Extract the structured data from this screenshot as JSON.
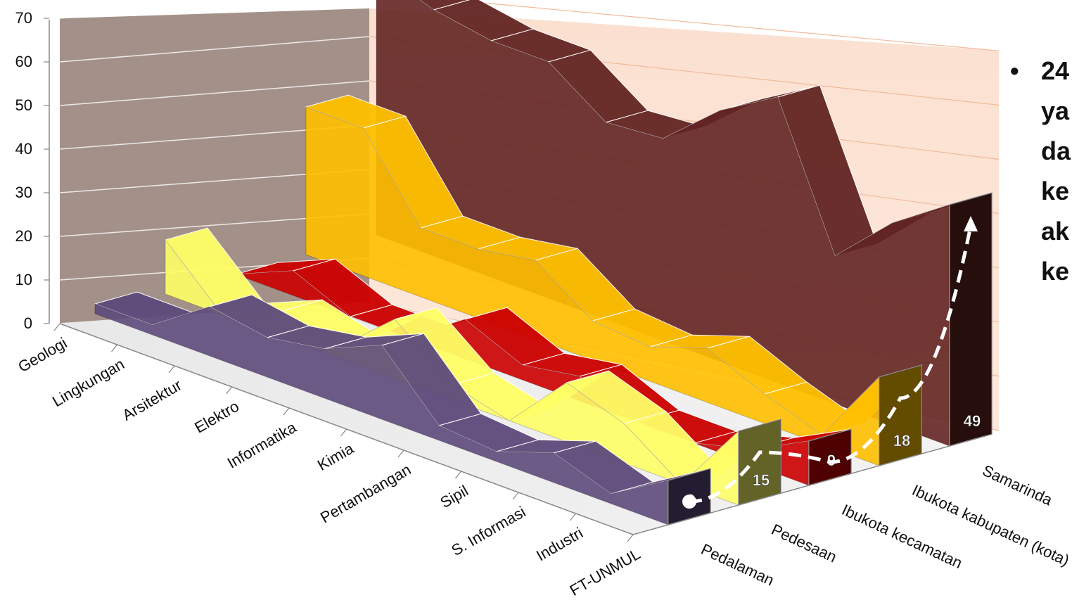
{
  "chart_data": {
    "type": "area",
    "style": "3d-area",
    "ylim": [
      0,
      70
    ],
    "y_ticks": [
      "0",
      "10",
      "20",
      "30",
      "40",
      "50",
      "60",
      "70"
    ],
    "categories": [
      "Geologi",
      "Lingkungan",
      "Arsitektur",
      "Elektro",
      "Informatika",
      "Kimia",
      "Pertambangan",
      "Sipil",
      "S. Informasi",
      "Industri",
      "FT-UNMUL"
    ],
    "series": [
      {
        "name": "Pedalaman",
        "color": "#5e4a7c",
        "values": [
          2,
          2,
          10,
          8,
          10,
          15,
          3,
          2,
          6,
          2,
          9
        ]
      },
      {
        "name": "Pedesaan",
        "color": "#ffff66",
        "values": [
          11,
          0,
          5,
          2,
          12,
          3,
          0,
          12,
          8,
          0,
          15
        ]
      },
      {
        "name": "Ibukota kecamatan",
        "color": "#cc0000",
        "values": [
          0,
          5,
          0,
          0,
          8,
          3,
          5,
          0,
          0,
          3,
          9
        ]
      },
      {
        "name": "Ibukota kabupaten (kota)",
        "color": "#ffc000",
        "values": [
          30,
          30,
          14,
          14,
          16,
          8,
          7,
          11,
          6,
          2,
          18
        ]
      },
      {
        "name": "Samarinda",
        "color": "#632523",
        "values": [
          54,
          50,
          48,
          48,
          40,
          41,
          51,
          58,
          30,
          41,
          49
        ]
      }
    ],
    "data_labels": [
      "9",
      "15",
      "9",
      "18",
      "49"
    ]
  },
  "bullet_text": [
    "24",
    "ya",
    "da",
    "ke",
    "ak",
    "ke"
  ],
  "bullet_char": "•"
}
